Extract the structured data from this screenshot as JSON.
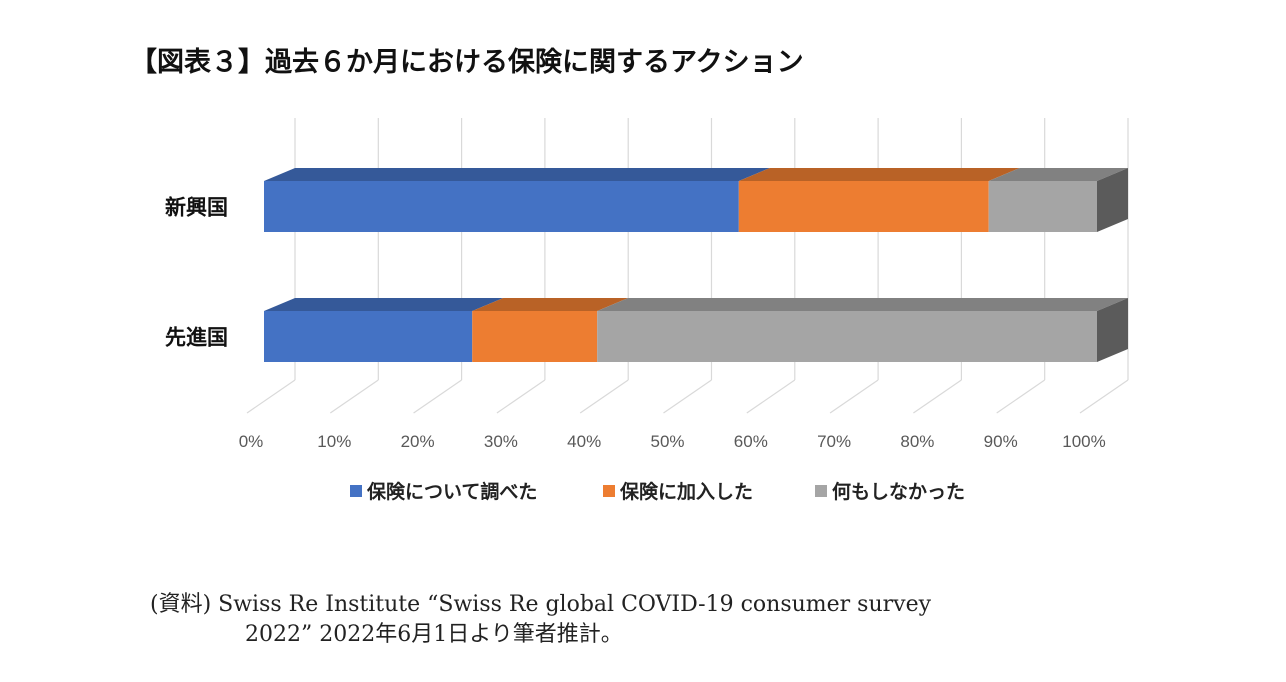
{
  "title": "【図表３】過去６か月における保険に関するアクション",
  "source": {
    "line1": "(資料) Swiss Re Institute “Swiss Re global COVID-19 consumer survey",
    "line2": "2022” 2022年6月1日より筆者推計。"
  },
  "chart_data": {
    "type": "bar",
    "orientation": "horizontal",
    "stacked": true,
    "percent_stacked": true,
    "style": "3d",
    "categories": [
      "新興国",
      "先進国"
    ],
    "series": [
      {
        "name": "保険について調べた",
        "values": [
          57,
          25
        ],
        "color": "#4472c4"
      },
      {
        "name": "保険に加入した",
        "values": [
          30,
          15
        ],
        "color": "#ed7d31"
      },
      {
        "name": "何もしなかった",
        "values": [
          13,
          60
        ],
        "color": "#a5a5a5"
      }
    ],
    "x_ticks": [
      "0%",
      "10%",
      "20%",
      "30%",
      "40%",
      "50%",
      "60%",
      "70%",
      "80%",
      "90%",
      "100%"
    ],
    "xlim": [
      0,
      100
    ],
    "grid": true,
    "legend_position": "bottom"
  }
}
